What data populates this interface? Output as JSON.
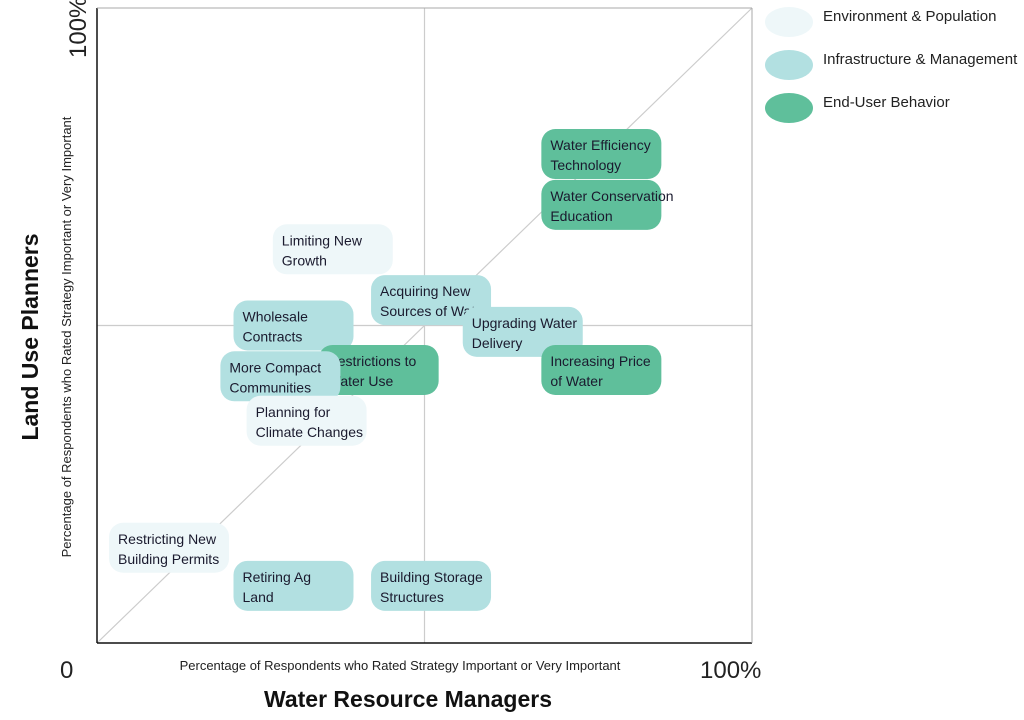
{
  "chart_data": {
    "type": "scatter",
    "x_axis": {
      "min_label": "0",
      "max_label": "100%",
      "sublabel": "Percentage of Respondents who Rated Strategy Important or Very Important",
      "title": "Water Resource Managers"
    },
    "y_axis": {
      "max_label": "100%",
      "sublabel": "Percentage of Respondents who Rated Strategy Important or Very Important",
      "title": "Land Use Planners"
    },
    "xlim": [
      0,
      100
    ],
    "ylim": [
      0,
      100
    ],
    "midlines": [
      50,
      50
    ],
    "diagonal": true,
    "legend_position": "top-right",
    "categories": [
      {
        "key": "env",
        "name": "Environment & Population",
        "color": "#eef7f9"
      },
      {
        "key": "infra",
        "name": "Infrastructure & Management",
        "color": "#b2e0e1"
      },
      {
        "key": "user",
        "name": "End-User Behavior",
        "color": "#5fbf9b"
      }
    ],
    "points": [
      {
        "label": [
          "Water Efficiency",
          "Technology"
        ],
        "category": "user",
        "x": 77,
        "y": 77
      },
      {
        "label": [
          "Water Conservation",
          "Education"
        ],
        "category": "user",
        "x": 77,
        "y": 69
      },
      {
        "label": [
          "Limiting New",
          "Growth"
        ],
        "category": "env",
        "x": 36,
        "y": 62
      },
      {
        "label": [
          "Acquiring New",
          "Sources of Water"
        ],
        "category": "infra",
        "x": 51,
        "y": 54
      },
      {
        "label": [
          "Wholesale",
          "Contracts"
        ],
        "category": "infra",
        "x": 30,
        "y": 50
      },
      {
        "label": [
          "Upgrading Water",
          "Delivery"
        ],
        "category": "infra",
        "x": 65,
        "y": 49
      },
      {
        "label": [
          "Restrictions to",
          "Water Use"
        ],
        "category": "user",
        "x": 43,
        "y": 43
      },
      {
        "label": [
          "Increasing Price",
          "of Water"
        ],
        "category": "user",
        "x": 77,
        "y": 43
      },
      {
        "label": [
          "More Compact",
          "Communities"
        ],
        "category": "infra",
        "x": 28,
        "y": 42
      },
      {
        "label": [
          "Planning for",
          "Climate Changes"
        ],
        "category": "env",
        "x": 32,
        "y": 35
      },
      {
        "label": [
          "Restricting New",
          "Building Permits"
        ],
        "category": "env",
        "x": 11,
        "y": 15
      },
      {
        "label": [
          "Retiring Ag",
          "Land"
        ],
        "category": "infra",
        "x": 30,
        "y": 9
      },
      {
        "label": [
          "Building Storage",
          "Structures"
        ],
        "category": "infra",
        "x": 51,
        "y": 9
      }
    ]
  }
}
